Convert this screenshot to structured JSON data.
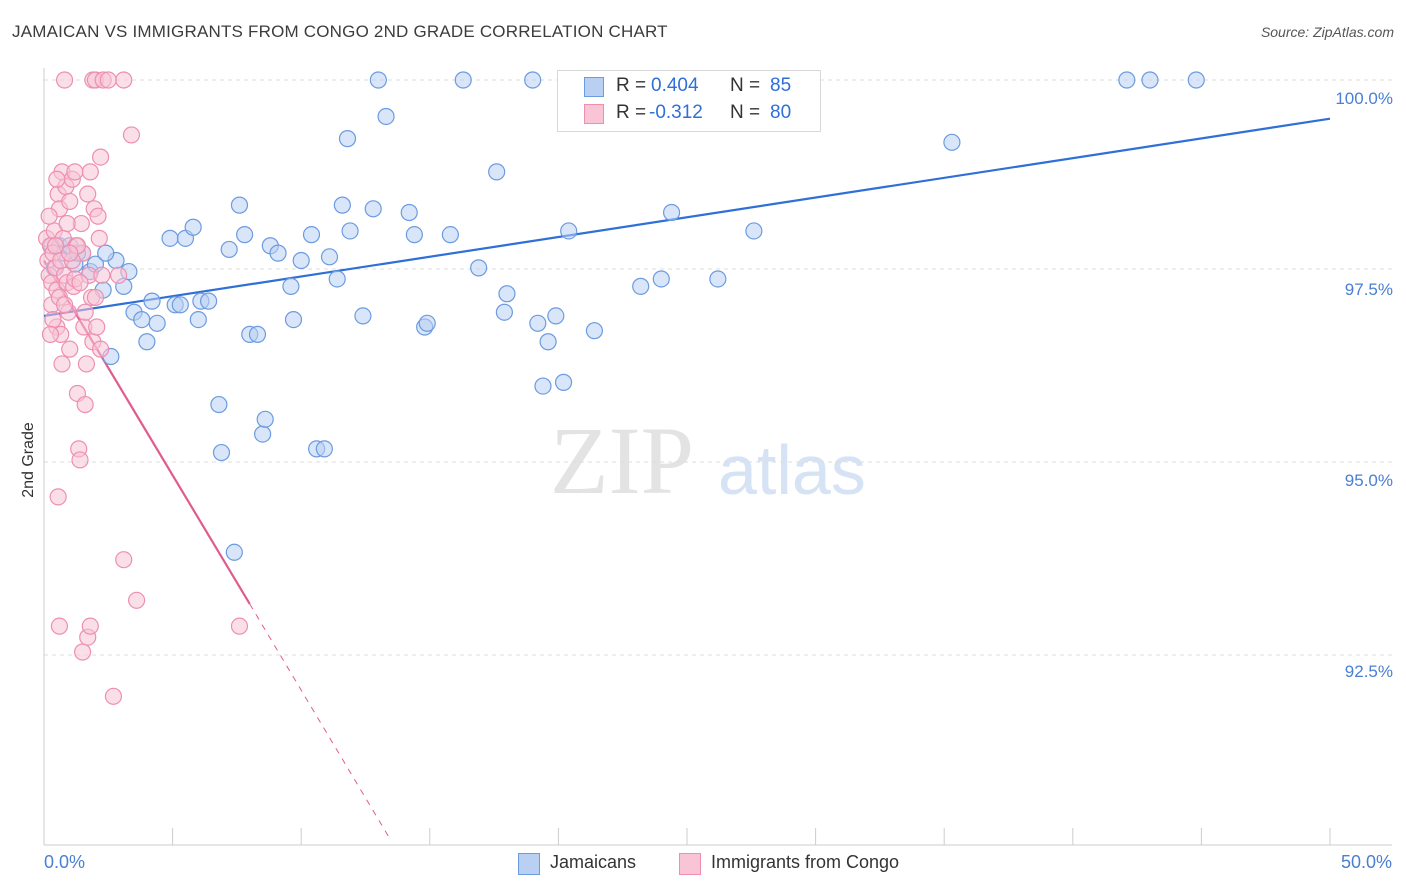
{
  "chart_data": {
    "type": "scatter",
    "title": "JAMAICAN VS IMMIGRANTS FROM CONGO 2ND GRADE CORRELATION CHART",
    "source": "Source: ZipAtlas.com",
    "xlabel": "",
    "ylabel": "2nd Grade",
    "xlim": [
      0,
      50
    ],
    "ylim": [
      90.0,
      100.2
    ],
    "x_tick_labels": {
      "min": "0.0%",
      "max": "50.0%"
    },
    "y_ticks": [
      {
        "value": 100.0,
        "label": "100.0%"
      },
      {
        "value": 97.5,
        "label": "97.5%"
      },
      {
        "value": 95.0,
        "label": "95.0%"
      },
      {
        "value": 92.5,
        "label": "92.5%"
      }
    ],
    "grid": true,
    "legend_position": "bottom-center",
    "watermark": {
      "zip": "ZIP",
      "atlas": "atlas"
    },
    "stats": [
      {
        "r_label": "R = ",
        "r_value": "0.404",
        "n_label": "N = ",
        "n_value": "85"
      },
      {
        "r_label": "R = ",
        "r_value": "-0.312",
        "n_label": "N = ",
        "n_value": "80"
      }
    ],
    "series": [
      {
        "name": "Jamaicans",
        "color": "#6b9be0",
        "fill": "#b9d0f2",
        "trend": {
          "x0": 0,
          "y0": 97.05,
          "x1": 50,
          "y1": 99.72,
          "color": "#2e6fd8"
        },
        "points": [
          [
            0.3,
            98.0
          ],
          [
            0.6,
            98.0
          ],
          [
            0.8,
            97.9
          ],
          [
            1.0,
            98.0
          ],
          [
            1.2,
            97.75
          ],
          [
            1.5,
            97.9
          ],
          [
            1.8,
            97.65
          ],
          [
            2.0,
            97.75
          ],
          [
            2.3,
            97.4
          ],
          [
            2.6,
            96.5
          ],
          [
            2.8,
            97.8
          ],
          [
            3.1,
            97.45
          ],
          [
            3.3,
            97.65
          ],
          [
            3.5,
            97.1
          ],
          [
            3.8,
            97.0
          ],
          [
            4.0,
            96.7
          ],
          [
            4.2,
            97.25
          ],
          [
            4.4,
            96.95
          ],
          [
            4.9,
            98.1
          ],
          [
            5.1,
            97.2
          ],
          [
            5.3,
            97.2
          ],
          [
            5.5,
            98.1
          ],
          [
            5.8,
            98.25
          ],
          [
            6.0,
            97.0
          ],
          [
            6.1,
            97.25
          ],
          [
            6.4,
            97.25
          ],
          [
            6.8,
            95.85
          ],
          [
            6.9,
            95.2
          ],
          [
            7.2,
            97.95
          ],
          [
            7.4,
            93.85
          ],
          [
            7.6,
            98.55
          ],
          [
            7.8,
            98.15
          ],
          [
            8.0,
            96.8
          ],
          [
            8.3,
            96.8
          ],
          [
            8.5,
            95.45
          ],
          [
            8.6,
            95.65
          ],
          [
            8.8,
            98.0
          ],
          [
            9.1,
            97.9
          ],
          [
            9.6,
            97.45
          ],
          [
            9.7,
            97.0
          ],
          [
            10.0,
            97.8
          ],
          [
            10.4,
            98.15
          ],
          [
            10.6,
            95.25
          ],
          [
            10.9,
            95.25
          ],
          [
            11.1,
            97.85
          ],
          [
            11.4,
            97.55
          ],
          [
            11.6,
            98.55
          ],
          [
            11.8,
            99.45
          ],
          [
            11.9,
            98.2
          ],
          [
            12.4,
            97.05
          ],
          [
            12.8,
            98.5
          ],
          [
            13.0,
            100.0
          ],
          [
            13.3,
            99.75
          ],
          [
            14.2,
            98.45
          ],
          [
            14.4,
            98.15
          ],
          [
            14.8,
            96.9
          ],
          [
            14.9,
            96.95
          ],
          [
            15.8,
            98.15
          ],
          [
            16.3,
            100.0
          ],
          [
            16.9,
            97.7
          ],
          [
            17.6,
            99.0
          ],
          [
            17.9,
            97.1
          ],
          [
            18.0,
            97.35
          ],
          [
            19.0,
            100.0
          ],
          [
            19.2,
            96.95
          ],
          [
            19.4,
            96.1
          ],
          [
            19.6,
            96.7
          ],
          [
            19.9,
            97.05
          ],
          [
            20.2,
            96.15
          ],
          [
            20.4,
            98.2
          ],
          [
            21.4,
            96.85
          ],
          [
            23.2,
            97.45
          ],
          [
            24.0,
            97.55
          ],
          [
            24.4,
            98.45
          ],
          [
            26.2,
            97.55
          ],
          [
            27.4,
            100.0
          ],
          [
            27.6,
            98.2
          ],
          [
            28.0,
            100.0
          ],
          [
            35.3,
            99.4
          ],
          [
            42.1,
            100.0
          ],
          [
            43.0,
            100.0
          ],
          [
            44.8,
            100.0
          ],
          [
            0.4,
            97.7
          ],
          [
            1.3,
            97.9
          ],
          [
            2.4,
            97.9
          ]
        ]
      },
      {
        "name": "Immigrants from Congo",
        "color": "#ee8fb0",
        "fill": "#f8c4d6",
        "trend": {
          "x0": 0,
          "y0": 97.8,
          "x1": 8.0,
          "y1": 93.15,
          "dash_x1": 13.4,
          "dash_y1": 90.0,
          "color": "#e05c8f"
        },
        "points": [
          [
            0.1,
            98.1
          ],
          [
            0.15,
            97.8
          ],
          [
            0.2,
            97.6
          ],
          [
            0.25,
            98.0
          ],
          [
            0.3,
            97.5
          ],
          [
            0.3,
            97.2
          ],
          [
            0.35,
            97.9
          ],
          [
            0.4,
            98.2
          ],
          [
            0.45,
            97.7
          ],
          [
            0.5,
            97.4
          ],
          [
            0.5,
            96.9
          ],
          [
            0.55,
            98.7
          ],
          [
            0.6,
            98.5
          ],
          [
            0.6,
            97.3
          ],
          [
            0.65,
            96.8
          ],
          [
            0.7,
            99.0
          ],
          [
            0.75,
            98.1
          ],
          [
            0.8,
            97.6
          ],
          [
            0.85,
            98.8
          ],
          [
            0.9,
            97.5
          ],
          [
            0.95,
            97.1
          ],
          [
            1.0,
            98.6
          ],
          [
            1.0,
            96.6
          ],
          [
            1.1,
            98.9
          ],
          [
            1.15,
            97.45
          ],
          [
            1.2,
            97.55
          ],
          [
            1.25,
            98.0
          ],
          [
            1.3,
            96.0
          ],
          [
            1.35,
            95.25
          ],
          [
            1.4,
            95.1
          ],
          [
            1.45,
            98.3
          ],
          [
            1.5,
            97.9
          ],
          [
            1.55,
            96.9
          ],
          [
            1.6,
            95.85
          ],
          [
            1.65,
            96.4
          ],
          [
            1.7,
            98.7
          ],
          [
            1.75,
            97.6
          ],
          [
            1.8,
            99.0
          ],
          [
            1.85,
            97.3
          ],
          [
            1.9,
            96.7
          ],
          [
            1.95,
            98.5
          ],
          [
            2.0,
            97.3
          ],
          [
            2.05,
            96.9
          ],
          [
            2.1,
            98.4
          ],
          [
            2.15,
            98.1
          ],
          [
            2.2,
            96.6
          ],
          [
            2.25,
            97.6
          ],
          [
            0.55,
            94.6
          ],
          [
            0.6,
            92.85
          ],
          [
            0.8,
            100.0
          ],
          [
            1.5,
            92.5
          ],
          [
            1.7,
            92.7
          ],
          [
            1.8,
            92.85
          ],
          [
            1.9,
            100.0
          ],
          [
            2.0,
            100.0
          ],
          [
            2.2,
            99.2
          ],
          [
            2.3,
            100.0
          ],
          [
            2.5,
            100.0
          ],
          [
            2.7,
            91.9
          ],
          [
            2.9,
            97.6
          ],
          [
            3.1,
            100.0
          ],
          [
            3.1,
            93.75
          ],
          [
            3.4,
            99.5
          ],
          [
            3.6,
            93.2
          ],
          [
            7.6,
            92.85
          ],
          [
            0.2,
            98.4
          ],
          [
            0.35,
            97.0
          ],
          [
            0.5,
            98.9
          ],
          [
            0.65,
            97.8
          ],
          [
            0.7,
            96.4
          ],
          [
            0.9,
            98.3
          ],
          [
            1.1,
            97.8
          ],
          [
            1.2,
            99.0
          ],
          [
            1.3,
            98.0
          ],
          [
            1.4,
            97.5
          ],
          [
            1.6,
            97.1
          ],
          [
            0.25,
            96.8
          ],
          [
            0.45,
            98.0
          ],
          [
            0.8,
            97.2
          ],
          [
            1.0,
            97.9
          ]
        ]
      }
    ]
  }
}
